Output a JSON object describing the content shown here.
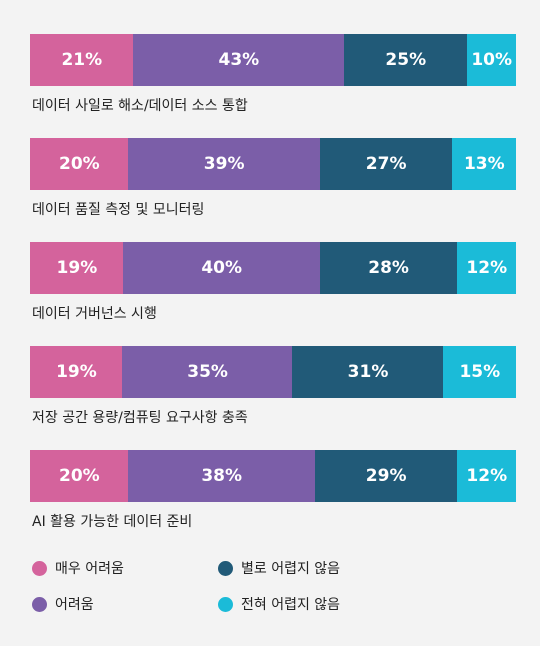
{
  "chart_data": {
    "type": "bar",
    "orientation": "horizontal",
    "stacked": true,
    "categories": [
      "데이터 사일로 해소/데이터 소스 통합",
      "데이터 품질 측정 및 모니터링",
      "데이터 거버넌스 시행",
      "저장 공간 용량/컴퓨팅 요구사항 충족",
      "AI 활용 가능한 데이터 준비"
    ],
    "series": [
      {
        "name": "매우 어려움",
        "color": "#d4639c",
        "values": [
          21,
          20,
          19,
          19,
          20
        ],
        "labels": [
          "21%",
          "20%",
          "19%",
          "19%",
          "20%"
        ]
      },
      {
        "name": "어려움",
        "color": "#7b5ea8",
        "values": [
          43,
          39,
          40,
          35,
          38
        ],
        "labels": [
          "43%",
          "39%",
          "40%",
          "35%",
          "38%"
        ]
      },
      {
        "name": "별로 어렵지 않음",
        "color": "#215a78",
        "values": [
          25,
          27,
          28,
          31,
          29
        ],
        "labels": [
          "25%",
          "27%",
          "28%",
          "31%",
          "29%"
        ]
      },
      {
        "name": "전혀 어렵지 않음",
        "color": "#1bbbd8",
        "values": [
          10,
          13,
          12,
          15,
          12
        ],
        "labels": [
          "10%",
          "13%",
          "12%",
          "15%",
          "12%"
        ]
      }
    ],
    "legend_position": "bottom",
    "grid": false
  }
}
